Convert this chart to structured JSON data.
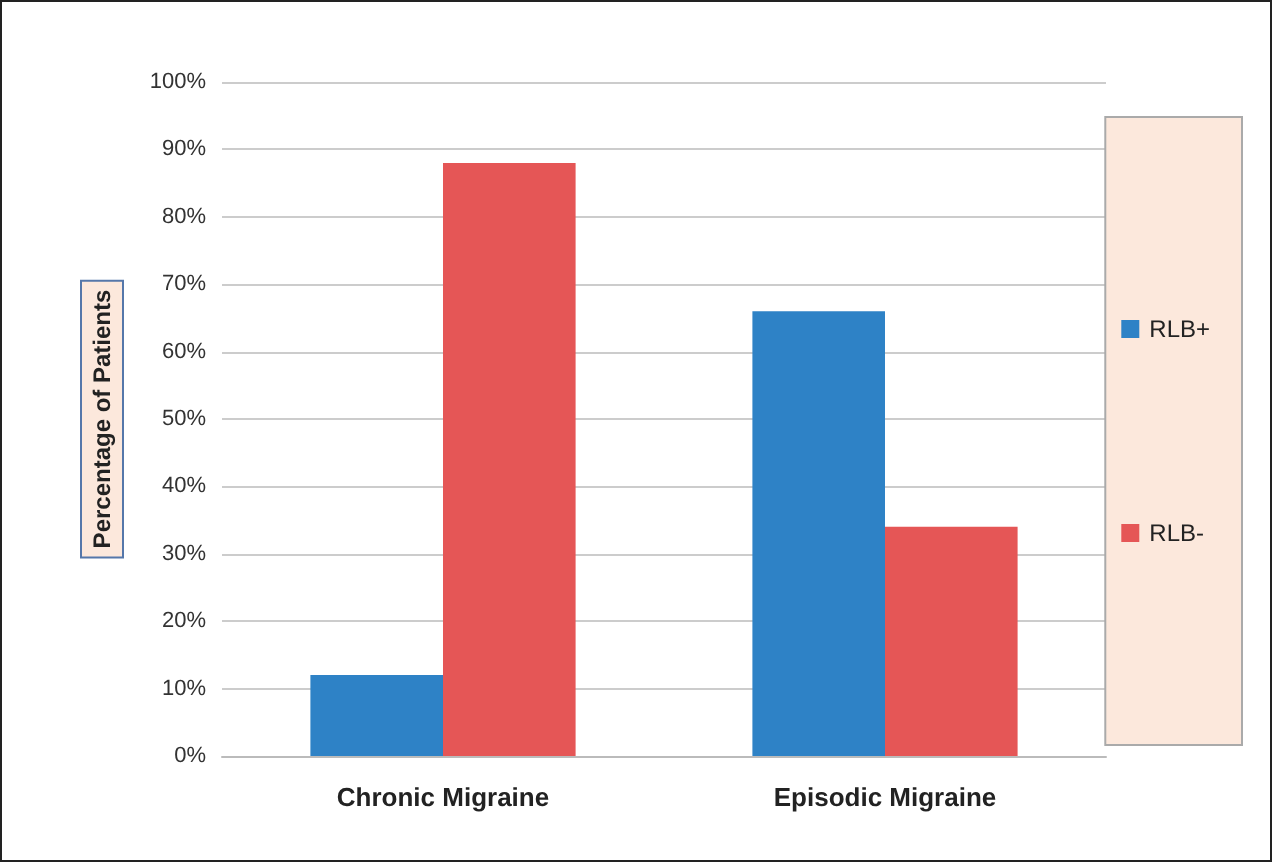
{
  "chart_data": {
    "type": "bar",
    "ylabel": "Percentage of Patients",
    "categories": [
      "Chronic Migraine",
      "Episodic Migraine"
    ],
    "series": [
      {
        "name": "RLB+",
        "color": "#2e82c6",
        "values": [
          12,
          66
        ]
      },
      {
        "name": "RLB-",
        "color": "#e55656",
        "values": [
          88,
          34
        ]
      }
    ],
    "ylim": [
      0,
      100
    ],
    "yticks": [
      {
        "value": 0,
        "label": "0%"
      },
      {
        "value": 10,
        "label": "10%"
      },
      {
        "value": 20,
        "label": "20%"
      },
      {
        "value": 30,
        "label": "30%"
      },
      {
        "value": 40,
        "label": "40%"
      },
      {
        "value": 50,
        "label": "50%"
      },
      {
        "value": 60,
        "label": "60%"
      },
      {
        "value": 70,
        "label": "70%"
      },
      {
        "value": 80,
        "label": "80%"
      },
      {
        "value": 90,
        "label": "90%"
      },
      {
        "value": 100,
        "label": "100%"
      }
    ],
    "grid": "y",
    "legend": "right"
  }
}
